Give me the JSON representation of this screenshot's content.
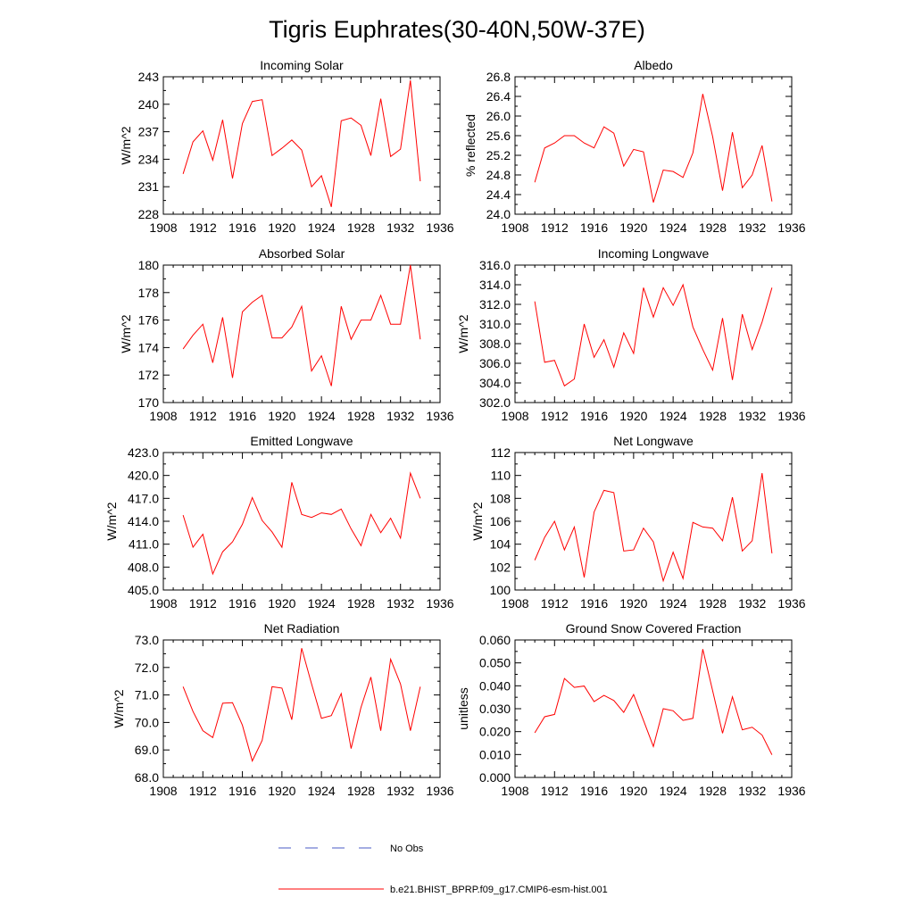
{
  "title": "Tigris Euphrates(30-40N,50W-37E)",
  "colors": {
    "model_line": "#ff0000",
    "obs_line": "#4a5bc4",
    "axis": "#000000"
  },
  "legend": [
    {
      "label": "No Obs",
      "style": "dashed",
      "color": "#4a5bc4"
    },
    {
      "label": "b.e21.BHIST_BPRP.f09_g17.CMIP6-esm-hist.001",
      "style": "solid",
      "color": "#ff0000"
    }
  ],
  "chart_data": [
    {
      "type": "line",
      "title": "Incoming Solar",
      "ylabel": "W/m^2",
      "xlim": [
        1908,
        1936
      ],
      "ylim": [
        228,
        243
      ],
      "xticks": [
        "1908",
        "1912",
        "1916",
        "1920",
        "1924",
        "1928",
        "1932",
        "1936"
      ],
      "yticks": [
        "228",
        "231",
        "234",
        "237",
        "240",
        "243"
      ],
      "x": [
        1910,
        1911,
        1912,
        1913,
        1914,
        1915,
        1916,
        1917,
        1918,
        1919,
        1920,
        1921,
        1922,
        1923,
        1924,
        1925,
        1926,
        1927,
        1928,
        1929,
        1930,
        1931,
        1932,
        1933,
        1934
      ],
      "series": [
        {
          "values": [
            232.4,
            235.9,
            237.1,
            233.9,
            238.3,
            231.9,
            237.9,
            240.3,
            240.5,
            234.4,
            235.2,
            236.1,
            235.0,
            231.0,
            232.2,
            228.8,
            238.2,
            238.5,
            237.7,
            234.4,
            240.6,
            234.3,
            235.1,
            242.6,
            231.6
          ]
        }
      ]
    },
    {
      "type": "line",
      "title": "Albedo",
      "ylabel": "% reflected",
      "xlim": [
        1908,
        1936
      ],
      "ylim": [
        24.0,
        26.8
      ],
      "xticks": [
        "1908",
        "1912",
        "1916",
        "1920",
        "1924",
        "1928",
        "1932",
        "1936"
      ],
      "yticks": [
        "24.0",
        "24.4",
        "24.8",
        "25.2",
        "25.6",
        "26.0",
        "26.4",
        "26.8"
      ],
      "x": [
        1910,
        1911,
        1912,
        1913,
        1914,
        1915,
        1916,
        1917,
        1918,
        1919,
        1920,
        1921,
        1922,
        1923,
        1924,
        1925,
        1926,
        1927,
        1928,
        1929,
        1930,
        1931,
        1932,
        1933,
        1934
      ],
      "series": [
        {
          "values": [
            24.65,
            25.35,
            25.45,
            25.6,
            25.6,
            25.45,
            25.35,
            25.78,
            25.65,
            24.98,
            25.32,
            25.27,
            24.24,
            24.9,
            24.87,
            24.75,
            25.25,
            26.45,
            25.58,
            24.48,
            25.67,
            24.54,
            24.8,
            25.4,
            24.26
          ]
        }
      ]
    },
    {
      "type": "line",
      "title": "Absorbed Solar",
      "ylabel": "W/m^2",
      "xlim": [
        1908,
        1936
      ],
      "ylim": [
        170,
        180
      ],
      "xticks": [
        "1908",
        "1912",
        "1916",
        "1920",
        "1924",
        "1928",
        "1932",
        "1936"
      ],
      "yticks": [
        "170",
        "172",
        "174",
        "176",
        "178",
        "180"
      ],
      "x": [
        1910,
        1911,
        1912,
        1913,
        1914,
        1915,
        1916,
        1917,
        1918,
        1919,
        1920,
        1921,
        1922,
        1923,
        1924,
        1925,
        1926,
        1927,
        1928,
        1929,
        1930,
        1931,
        1932,
        1933,
        1934
      ],
      "series": [
        {
          "values": [
            173.9,
            174.9,
            175.7,
            172.9,
            176.2,
            171.8,
            176.6,
            177.3,
            177.8,
            174.7,
            174.7,
            175.5,
            177.0,
            172.3,
            173.4,
            171.2,
            177.0,
            174.6,
            176.0,
            176.0,
            177.8,
            175.7,
            175.7,
            180.0,
            174.6
          ]
        }
      ]
    },
    {
      "type": "line",
      "title": "Incoming Longwave",
      "ylabel": "W/m^2",
      "xlim": [
        1908,
        1936
      ],
      "ylim": [
        302.0,
        316.0
      ],
      "xticks": [
        "1908",
        "1912",
        "1916",
        "1920",
        "1924",
        "1928",
        "1932",
        "1936"
      ],
      "yticks": [
        "302.0",
        "304.0",
        "306.0",
        "308.0",
        "310.0",
        "312.0",
        "314.0",
        "316.0"
      ],
      "x": [
        1910,
        1911,
        1912,
        1913,
        1914,
        1915,
        1916,
        1917,
        1918,
        1919,
        1920,
        1921,
        1922,
        1923,
        1924,
        1925,
        1926,
        1927,
        1928,
        1929,
        1930,
        1931,
        1932,
        1933,
        1934
      ],
      "series": [
        {
          "values": [
            312.3,
            306.1,
            306.3,
            303.7,
            304.4,
            310.0,
            306.6,
            308.4,
            305.6,
            309.1,
            307.0,
            313.7,
            310.7,
            313.7,
            311.9,
            314.0,
            309.7,
            307.4,
            305.3,
            310.6,
            304.3,
            311.0,
            307.4,
            310.2,
            313.7
          ]
        }
      ]
    },
    {
      "type": "line",
      "title": "Emitted Longwave",
      "ylabel": "W/m^2",
      "xlim": [
        1908,
        1936
      ],
      "ylim": [
        405.0,
        423.0
      ],
      "xticks": [
        "1908",
        "1912",
        "1916",
        "1920",
        "1924",
        "1928",
        "1932",
        "1936"
      ],
      "yticks": [
        "405.0",
        "408.0",
        "411.0",
        "414.0",
        "417.0",
        "420.0",
        "423.0"
      ],
      "x": [
        1910,
        1911,
        1912,
        1913,
        1914,
        1915,
        1916,
        1917,
        1918,
        1919,
        1920,
        1921,
        1922,
        1923,
        1924,
        1925,
        1926,
        1927,
        1928,
        1929,
        1930,
        1931,
        1932,
        1933,
        1934
      ],
      "series": [
        {
          "values": [
            414.8,
            410.6,
            412.3,
            407.1,
            410.0,
            411.3,
            413.6,
            417.1,
            414.1,
            412.6,
            410.6,
            419.1,
            414.9,
            414.5,
            415.1,
            414.9,
            415.6,
            413.0,
            410.8,
            414.9,
            412.5,
            414.4,
            411.8,
            420.3,
            417.0
          ]
        }
      ]
    },
    {
      "type": "line",
      "title": "Net Longwave",
      "ylabel": "W/m^2",
      "xlim": [
        1908,
        1936
      ],
      "ylim": [
        100,
        112
      ],
      "xticks": [
        "1908",
        "1912",
        "1916",
        "1920",
        "1924",
        "1928",
        "1932",
        "1936"
      ],
      "yticks": [
        "100",
        "102",
        "104",
        "106",
        "108",
        "110",
        "112"
      ],
      "x": [
        1910,
        1911,
        1912,
        1913,
        1914,
        1915,
        1916,
        1917,
        1918,
        1919,
        1920,
        1921,
        1922,
        1923,
        1924,
        1925,
        1926,
        1927,
        1928,
        1929,
        1930,
        1931,
        1932,
        1933,
        1934
      ],
      "series": [
        {
          "values": [
            102.6,
            104.6,
            106.0,
            103.5,
            105.5,
            101.1,
            106.8,
            108.7,
            108.5,
            103.4,
            103.5,
            105.4,
            104.2,
            100.8,
            103.3,
            101.0,
            105.9,
            105.5,
            105.4,
            104.3,
            108.1,
            103.4,
            104.3,
            110.2,
            103.2
          ]
        }
      ]
    },
    {
      "type": "line",
      "title": "Net Radiation",
      "ylabel": "W/m^2",
      "xlim": [
        1908,
        1936
      ],
      "ylim": [
        68.0,
        73.0
      ],
      "xticks": [
        "1908",
        "1912",
        "1916",
        "1920",
        "1924",
        "1928",
        "1932",
        "1936"
      ],
      "yticks": [
        "68.0",
        "69.0",
        "70.0",
        "71.0",
        "72.0",
        "73.0"
      ],
      "x": [
        1910,
        1911,
        1912,
        1913,
        1914,
        1915,
        1916,
        1917,
        1918,
        1919,
        1920,
        1921,
        1922,
        1923,
        1924,
        1925,
        1926,
        1927,
        1928,
        1929,
        1930,
        1931,
        1932,
        1933,
        1934
      ],
      "series": [
        {
          "values": [
            71.3,
            70.4,
            69.7,
            69.45,
            70.7,
            70.72,
            69.9,
            68.6,
            69.35,
            71.3,
            71.25,
            70.1,
            72.7,
            71.4,
            70.15,
            70.25,
            71.05,
            69.05,
            70.55,
            71.65,
            69.7,
            72.3,
            71.4,
            69.7,
            71.3
          ]
        }
      ]
    },
    {
      "type": "line",
      "title": "Ground Snow Covered Fraction",
      "ylabel": "unitless",
      "xlim": [
        1908,
        1936
      ],
      "ylim": [
        0.0,
        0.06
      ],
      "xticks": [
        "1908",
        "1912",
        "1916",
        "1920",
        "1924",
        "1928",
        "1932",
        "1936"
      ],
      "yticks": [
        "0.000",
        "0.010",
        "0.020",
        "0.030",
        "0.040",
        "0.050",
        "0.060"
      ],
      "x": [
        1910,
        1911,
        1912,
        1913,
        1914,
        1915,
        1916,
        1917,
        1918,
        1919,
        1920,
        1921,
        1922,
        1923,
        1924,
        1925,
        1926,
        1927,
        1928,
        1929,
        1930,
        1931,
        1932,
        1933,
        1934
      ],
      "series": [
        {
          "values": [
            0.0195,
            0.0265,
            0.0275,
            0.0432,
            0.0393,
            0.0399,
            0.0331,
            0.0358,
            0.0336,
            0.0284,
            0.0362,
            0.0249,
            0.0135,
            0.03,
            0.0291,
            0.0249,
            0.0258,
            0.056,
            0.0378,
            0.0193,
            0.0352,
            0.0208,
            0.0219,
            0.0185,
            0.0099
          ]
        }
      ]
    }
  ]
}
